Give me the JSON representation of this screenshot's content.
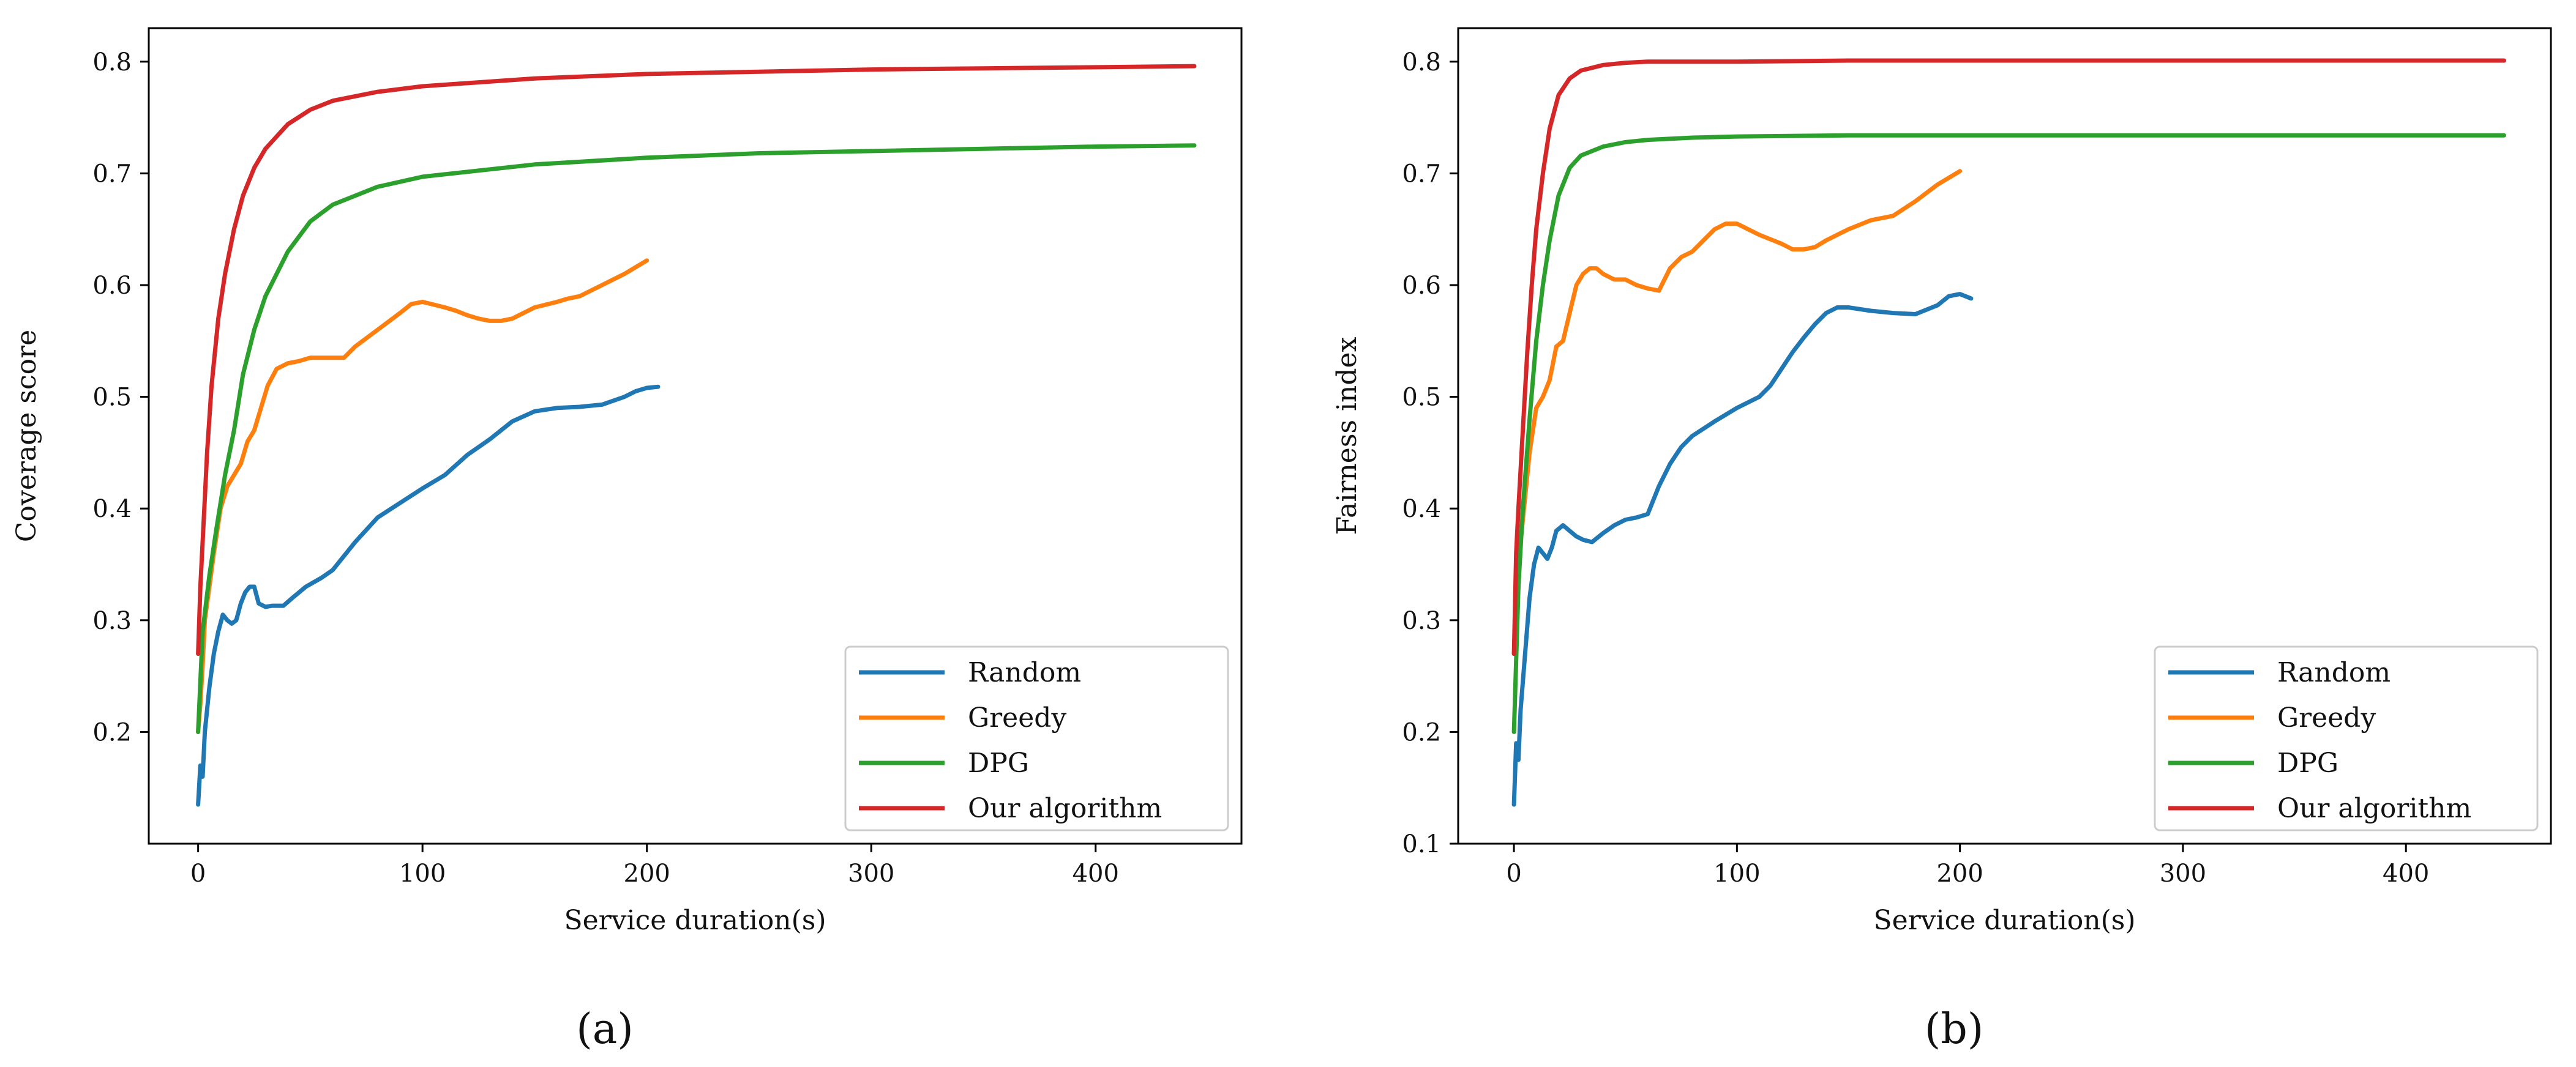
{
  "figure": {
    "panel_labels": [
      "(a)",
      "(b)"
    ]
  },
  "colors": {
    "Random": "#1f77b4",
    "Greedy": "#ff7f0e",
    "DPG": "#2ca02c",
    "Our algorithm": "#d62728"
  },
  "chart_data": [
    {
      "type": "line",
      "panel": "(a)",
      "title": "",
      "xlabel": "Service duration(s)",
      "ylabel": "Coverage score",
      "xlim": [
        -22,
        465
      ],
      "ylim": [
        0.1,
        0.83
      ],
      "xticks": [
        0,
        100,
        200,
        300,
        400
      ],
      "yticks": [
        0.2,
        0.3,
        0.4,
        0.5,
        0.6,
        0.7,
        0.8
      ],
      "legend_position": "lower-right",
      "grid": false,
      "series": [
        {
          "name": "Random",
          "x": [
            0,
            1,
            2,
            3,
            5,
            7,
            9,
            11,
            13,
            15,
            17,
            19,
            21,
            23,
            25,
            27,
            30,
            33,
            38,
            42,
            48,
            55,
            60,
            70,
            80,
            90,
            100,
            110,
            120,
            130,
            140,
            150,
            160,
            170,
            180,
            190,
            195,
            200,
            205
          ],
          "y": [
            0.135,
            0.17,
            0.16,
            0.2,
            0.24,
            0.27,
            0.29,
            0.305,
            0.3,
            0.297,
            0.3,
            0.315,
            0.325,
            0.33,
            0.33,
            0.315,
            0.312,
            0.313,
            0.313,
            0.32,
            0.33,
            0.338,
            0.345,
            0.37,
            0.392,
            0.405,
            0.418,
            0.43,
            0.448,
            0.462,
            0.478,
            0.487,
            0.49,
            0.491,
            0.493,
            0.5,
            0.505,
            0.508,
            0.509
          ]
        },
        {
          "name": "Greedy",
          "x": [
            0,
            1,
            2,
            3,
            5,
            7,
            10,
            13,
            16,
            19,
            22,
            25,
            28,
            31,
            35,
            40,
            45,
            50,
            55,
            60,
            65,
            70,
            80,
            90,
            95,
            100,
            110,
            115,
            120,
            125,
            130,
            135,
            140,
            145,
            150,
            160,
            165,
            170,
            180,
            190,
            200
          ],
          "y": [
            0.2,
            0.225,
            0.26,
            0.3,
            0.33,
            0.36,
            0.4,
            0.42,
            0.43,
            0.44,
            0.46,
            0.47,
            0.49,
            0.51,
            0.525,
            0.53,
            0.532,
            0.535,
            0.535,
            0.535,
            0.535,
            0.545,
            0.56,
            0.575,
            0.583,
            0.585,
            0.58,
            0.577,
            0.573,
            0.57,
            0.568,
            0.568,
            0.57,
            0.575,
            0.58,
            0.585,
            0.588,
            0.59,
            0.6,
            0.61,
            0.622
          ]
        },
        {
          "name": "DPG",
          "x": [
            0,
            2,
            5,
            8,
            12,
            16,
            20,
            25,
            30,
            40,
            50,
            60,
            80,
            100,
            150,
            200,
            250,
            300,
            350,
            400,
            444
          ],
          "y": [
            0.2,
            0.29,
            0.34,
            0.38,
            0.43,
            0.47,
            0.52,
            0.56,
            0.59,
            0.63,
            0.657,
            0.672,
            0.688,
            0.697,
            0.708,
            0.714,
            0.718,
            0.72,
            0.722,
            0.724,
            0.725
          ]
        },
        {
          "name": "Our algorithm",
          "x": [
            0,
            1,
            2,
            4,
            6,
            9,
            12,
            16,
            20,
            25,
            30,
            40,
            50,
            60,
            80,
            100,
            150,
            200,
            250,
            300,
            350,
            400,
            444
          ],
          "y": [
            0.27,
            0.33,
            0.37,
            0.45,
            0.51,
            0.57,
            0.61,
            0.65,
            0.68,
            0.705,
            0.722,
            0.744,
            0.757,
            0.765,
            0.773,
            0.778,
            0.785,
            0.789,
            0.791,
            0.793,
            0.794,
            0.795,
            0.796
          ]
        }
      ]
    },
    {
      "type": "line",
      "panel": "(b)",
      "title": "",
      "xlabel": "Service duration(s)",
      "ylabel": "Fairness index",
      "xlim": [
        -25,
        465
      ],
      "ylim": [
        0.1,
        0.83
      ],
      "xticks": [
        0,
        100,
        200,
        300,
        400
      ],
      "yticks": [
        0.1,
        0.2,
        0.3,
        0.4,
        0.5,
        0.6,
        0.7,
        0.8
      ],
      "legend_position": "lower-right",
      "grid": false,
      "series": [
        {
          "name": "Random",
          "x": [
            0,
            1,
            2,
            3,
            5,
            7,
            9,
            11,
            13,
            15,
            17,
            19,
            22,
            25,
            28,
            31,
            35,
            40,
            45,
            50,
            55,
            60,
            65,
            70,
            75,
            80,
            90,
            100,
            110,
            115,
            120,
            125,
            130,
            135,
            140,
            145,
            150,
            160,
            170,
            180,
            190,
            195,
            200,
            205
          ],
          "y": [
            0.135,
            0.19,
            0.175,
            0.22,
            0.27,
            0.32,
            0.35,
            0.365,
            0.36,
            0.355,
            0.365,
            0.38,
            0.385,
            0.38,
            0.375,
            0.372,
            0.37,
            0.378,
            0.385,
            0.39,
            0.392,
            0.395,
            0.42,
            0.44,
            0.455,
            0.465,
            0.478,
            0.49,
            0.5,
            0.51,
            0.525,
            0.54,
            0.553,
            0.565,
            0.575,
            0.58,
            0.58,
            0.577,
            0.575,
            0.574,
            0.582,
            0.59,
            0.592,
            0.588
          ]
        },
        {
          "name": "Greedy",
          "x": [
            0,
            1,
            2,
            3,
            5,
            7,
            10,
            13,
            16,
            19,
            22,
            25,
            28,
            31,
            34,
            37,
            40,
            45,
            50,
            55,
            60,
            65,
            70,
            75,
            80,
            85,
            90,
            95,
            100,
            110,
            120,
            125,
            130,
            135,
            140,
            145,
            150,
            160,
            170,
            180,
            190,
            200
          ],
          "y": [
            0.27,
            0.3,
            0.33,
            0.37,
            0.41,
            0.45,
            0.49,
            0.5,
            0.515,
            0.545,
            0.55,
            0.575,
            0.6,
            0.61,
            0.615,
            0.615,
            0.61,
            0.605,
            0.605,
            0.6,
            0.597,
            0.595,
            0.615,
            0.625,
            0.63,
            0.64,
            0.65,
            0.655,
            0.655,
            0.645,
            0.637,
            0.632,
            0.632,
            0.634,
            0.64,
            0.645,
            0.65,
            0.658,
            0.662,
            0.675,
            0.69,
            0.702
          ]
        },
        {
          "name": "DPG",
          "x": [
            0,
            2,
            4,
            7,
            10,
            13,
            16,
            20,
            25,
            30,
            40,
            50,
            60,
            80,
            100,
            150,
            200,
            250,
            300,
            350,
            400,
            444
          ],
          "y": [
            0.2,
            0.33,
            0.4,
            0.48,
            0.55,
            0.6,
            0.64,
            0.68,
            0.705,
            0.716,
            0.724,
            0.728,
            0.73,
            0.732,
            0.733,
            0.734,
            0.734,
            0.734,
            0.734,
            0.734,
            0.734,
            0.734
          ]
        },
        {
          "name": "Our algorithm",
          "x": [
            0,
            1,
            2,
            4,
            6,
            8,
            10,
            13,
            16,
            20,
            25,
            30,
            40,
            50,
            60,
            80,
            100,
            150,
            200,
            250,
            300,
            350,
            400,
            444
          ],
          "y": [
            0.27,
            0.36,
            0.4,
            0.47,
            0.54,
            0.6,
            0.65,
            0.7,
            0.74,
            0.77,
            0.785,
            0.792,
            0.797,
            0.799,
            0.8,
            0.8,
            0.8,
            0.801,
            0.801,
            0.801,
            0.801,
            0.801,
            0.801,
            0.801
          ]
        }
      ]
    }
  ]
}
